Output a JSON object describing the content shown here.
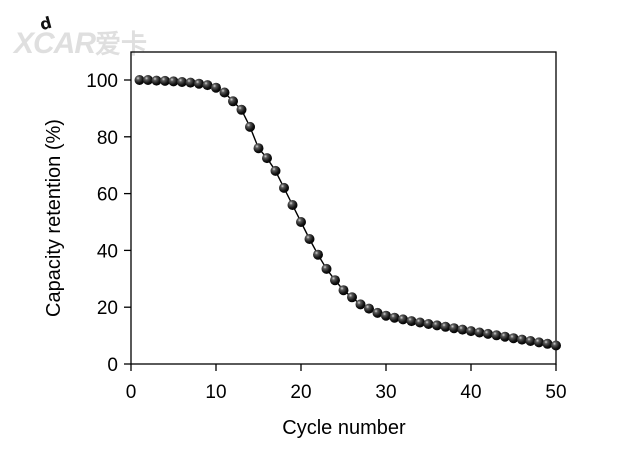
{
  "chart_data": {
    "type": "scatter",
    "xlabel": "Cycle number",
    "ylabel": "Capacity retention (%)",
    "xlim": [
      0,
      50
    ],
    "ylim": [
      0,
      105
    ],
    "xticks": [
      0,
      10,
      20,
      30,
      40,
      50
    ],
    "yticks": [
      0,
      20,
      40,
      60,
      80,
      100
    ],
    "grid": false,
    "legend": "none",
    "marker": "sphere",
    "colors": {
      "marker": "#111111",
      "line": "#000000",
      "axes": "#000000"
    },
    "series": [
      {
        "x": [
          1,
          2,
          3,
          4,
          5,
          6,
          7,
          8,
          9,
          10,
          11,
          12,
          13,
          14,
          15,
          16,
          17,
          18,
          19,
          20,
          21,
          22,
          23,
          24,
          25,
          26,
          27,
          28,
          29,
          30,
          31,
          32,
          33,
          34,
          35,
          36,
          37,
          38,
          39,
          40,
          41,
          42,
          43,
          44,
          45,
          46,
          47,
          48,
          49,
          50
        ],
        "y": [
          100,
          100,
          99.8,
          99.7,
          99.5,
          99.3,
          99.1,
          98.7,
          98.2,
          97.3,
          95.6,
          92.5,
          89.5,
          83.5,
          76,
          72.5,
          68,
          62,
          56,
          50,
          44,
          38.5,
          33.5,
          29.5,
          26,
          23.5,
          21,
          19.5,
          18,
          17,
          16.3,
          15.7,
          15.1,
          14.6,
          14.1,
          13.6,
          13.1,
          12.6,
          12.1,
          11.6,
          11.1,
          10.6,
          10.1,
          9.6,
          9.1,
          8.6,
          8.1,
          7.6,
          7.1,
          6.5
        ]
      }
    ]
  },
  "watermark": {
    "brand": "XCAR",
    "brand_cn": "爱卡"
  },
  "partial_mark": "d"
}
